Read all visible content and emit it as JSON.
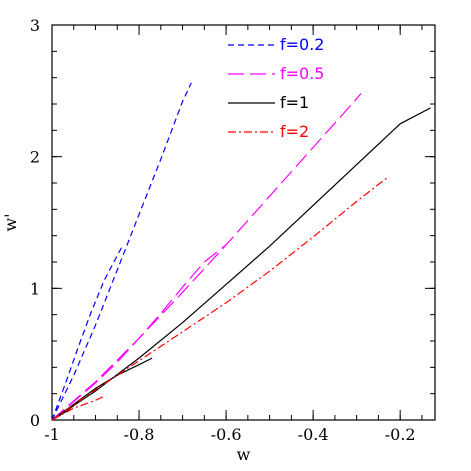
{
  "chart_data": {
    "type": "line",
    "title": "",
    "xlabel": "w",
    "ylabel": "w'",
    "xlim": [
      -1.0,
      -0.12
    ],
    "ylim": [
      0,
      3
    ],
    "x_major_ticks": [
      -1,
      -0.8,
      -0.6,
      -0.4,
      -0.2
    ],
    "x_tick_labels": [
      "-1",
      "-0.8",
      "-0.6",
      "-0.4",
      "-0.2"
    ],
    "x_minor_step": 0.05,
    "y_major_ticks": [
      0,
      1,
      2,
      3
    ],
    "y_tick_labels": [
      "0",
      "1",
      "2",
      "3"
    ],
    "y_minor_step": 0.2,
    "grid": false,
    "legend_position": "top-center",
    "series": [
      {
        "name": "f=0.2",
        "color": "#0000ff",
        "dash": "short-dash",
        "segments": [
          {
            "x": [
              -1.0,
              -0.95,
              -0.9,
              -0.85,
              -0.8,
              -0.75,
              -0.7,
              -0.68
            ],
            "y": [
              0.0,
              0.34,
              0.72,
              1.14,
              1.56,
              1.98,
              2.42,
              2.56
            ]
          },
          {
            "x": [
              -1.0,
              -0.97,
              -0.94,
              -0.91,
              -0.88,
              -0.85,
              -0.84
            ],
            "y": [
              0.0,
              0.27,
              0.55,
              0.82,
              1.06,
              1.25,
              1.31
            ]
          }
        ]
      },
      {
        "name": "f=0.5",
        "color": "#ff00ff",
        "dash": "long-dash",
        "segments": [
          {
            "x": [
              -1.0,
              -0.9,
              -0.8,
              -0.7,
              -0.6,
              -0.5,
              -0.4,
              -0.3,
              -0.29
            ],
            "y": [
              0.0,
              0.29,
              0.62,
              0.97,
              1.33,
              1.7,
              2.07,
              2.44,
              2.48
            ]
          },
          {
            "x": [
              -1.0,
              -0.95,
              -0.9,
              -0.85,
              -0.8,
              -0.75,
              -0.7,
              -0.65,
              -0.6
            ],
            "y": [
              0.0,
              0.14,
              0.28,
              0.44,
              0.62,
              0.81,
              1.01,
              1.2,
              1.33
            ]
          }
        ]
      },
      {
        "name": "f=1",
        "color": "#000000",
        "dash": "solid",
        "segments": [
          {
            "x": [
              -1.0,
              -0.9,
              -0.8,
              -0.7,
              -0.6,
              -0.5,
              -0.4,
              -0.3,
              -0.2,
              -0.13
            ],
            "y": [
              0.0,
              0.22,
              0.47,
              0.74,
              1.03,
              1.32,
              1.63,
              1.94,
              2.25,
              2.37
            ]
          },
          {
            "x": [
              -1.0,
              -0.95,
              -0.9,
              -0.85,
              -0.8,
              -0.77
            ],
            "y": [
              0.0,
              0.12,
              0.24,
              0.34,
              0.42,
              0.47
            ]
          },
          {
            "x": [
              -1.0,
              -0.97,
              -0.95
            ],
            "y": [
              0.0,
              0.06,
              0.11
            ]
          }
        ]
      },
      {
        "name": "f=2",
        "color": "#ff0000",
        "dash": "dash-dot",
        "segments": [
          {
            "x": [
              -1.0,
              -0.9,
              -0.8,
              -0.7,
              -0.6,
              -0.5,
              -0.4,
              -0.3,
              -0.23
            ],
            "y": [
              0.0,
              0.23,
              0.45,
              0.67,
              0.89,
              1.13,
              1.39,
              1.66,
              1.84
            ]
          },
          {
            "x": [
              -1.0,
              -0.95,
              -0.9,
              -0.88
            ],
            "y": [
              0.0,
              0.09,
              0.15,
              0.18
            ]
          }
        ]
      }
    ]
  }
}
